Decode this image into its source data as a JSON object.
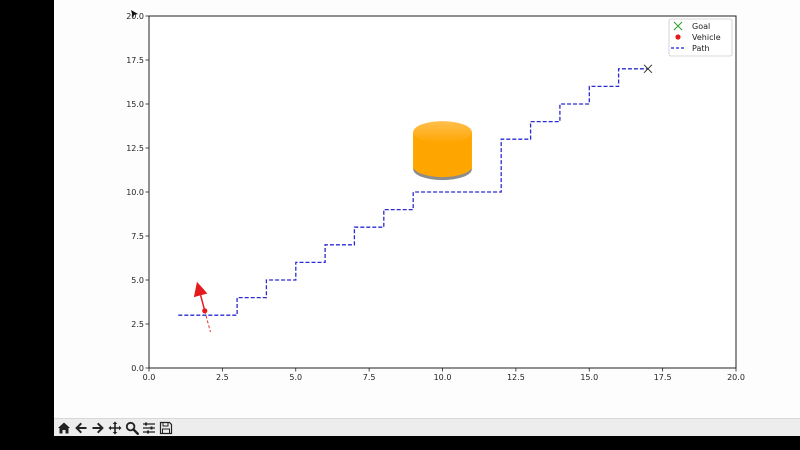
{
  "window": {},
  "toolbar": {
    "buttons": [
      {
        "name": "home-icon",
        "label": "Home"
      },
      {
        "name": "back-arrow-icon",
        "label": "Back"
      },
      {
        "name": "forward-arrow-icon",
        "label": "Forward"
      },
      {
        "name": "pan-icon",
        "label": "Pan"
      },
      {
        "name": "zoom-icon",
        "label": "Zoom"
      },
      {
        "name": "configure-subplots-icon",
        "label": "Configure subplots"
      },
      {
        "name": "save-icon",
        "label": "Save"
      }
    ]
  },
  "chart_data": {
    "type": "line",
    "title": "",
    "xlabel": "",
    "ylabel": "",
    "xlim": [
      0,
      20
    ],
    "ylim": [
      0,
      20
    ],
    "xticks": [
      "0.0",
      "2.5",
      "5.0",
      "7.5",
      "10.0",
      "12.5",
      "15.0",
      "17.5",
      "20.0"
    ],
    "yticks": [
      "0.0",
      "2.5",
      "5.0",
      "7.5",
      "10.0",
      "12.5",
      "15.0",
      "17.5",
      "20.0"
    ],
    "grid": false,
    "legend_position": "top-right",
    "legend": [
      {
        "label": "Goal",
        "marker": "x",
        "color": "#2ca02c"
      },
      {
        "label": "Vehicle",
        "marker": "o",
        "color": "#e41a1c"
      },
      {
        "label": "Path",
        "marker": "dashed-line",
        "color": "#1f1fd6"
      }
    ],
    "series": [
      {
        "name": "Path",
        "style": "dashed",
        "color": "#2a2ad0",
        "x": [
          1,
          3,
          3,
          4,
          4,
          5,
          5,
          6,
          6,
          7,
          7,
          8,
          8,
          9,
          9,
          12,
          12,
          13,
          13,
          14,
          14,
          15,
          15,
          16,
          16,
          17
        ],
        "y": [
          3,
          3,
          4,
          4,
          5,
          5,
          6,
          6,
          7,
          7,
          8,
          8,
          9,
          9,
          10,
          10,
          13,
          13,
          14,
          14,
          15,
          15,
          16,
          16,
          17,
          17
        ]
      }
    ],
    "goal": {
      "x": 17,
      "y": 17
    },
    "vehicle": {
      "x": 1.9,
      "y": 3.25,
      "heading_deg": 105,
      "color": "#e41a1c"
    },
    "obstacle": {
      "x": 10,
      "y": 12.5,
      "radius": 1,
      "color": "#ffa500"
    }
  }
}
